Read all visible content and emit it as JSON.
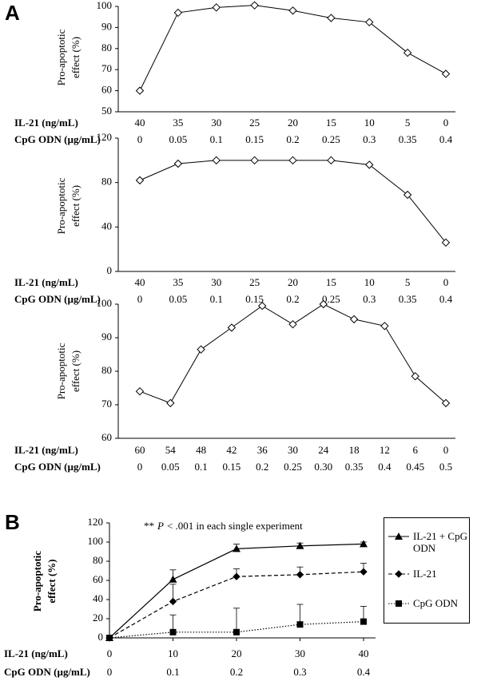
{
  "chart_data": [
    {
      "type": "line",
      "panel_label": "A",
      "y_label": [
        "Pro-apoptotic",
        "effect (%)"
      ],
      "row_label": "IL-21 (ng/mL)",
      "row2_label": "CpG ODN (µg/mL)",
      "categories": [
        "40",
        "35",
        "30",
        "25",
        "20",
        "15",
        "10",
        "5",
        "0"
      ],
      "categories2": [
        "0",
        "0.05",
        "0.1",
        "0.15",
        "0.2",
        "0.25",
        "0.3",
        "0.35",
        "0.4"
      ],
      "values": [
        60,
        97,
        99.5,
        100.5,
        98,
        94.5,
        92.5,
        78,
        68
      ],
      "color": "#000000",
      "marker": "diamond-open",
      "ylim": [
        50,
        100
      ],
      "yticks": [
        50,
        60,
        70,
        80,
        90,
        100
      ]
    },
    {
      "type": "line",
      "y_label": [
        "Pro-apoptotic",
        "effect (%)"
      ],
      "row_label": "IL-21 (ng/mL)",
      "row2_label": "CpG ODN (µg/mL)",
      "categories": [
        "40",
        "35",
        "30",
        "25",
        "20",
        "15",
        "10",
        "5",
        "0"
      ],
      "categories2": [
        "0",
        "0.05",
        "0.1",
        "0.15",
        "0.2",
        "0.25",
        "0.3",
        "0.35",
        "0.4"
      ],
      "values": [
        82,
        97,
        100,
        100,
        100,
        100,
        96,
        69,
        26
      ],
      "color": "#000000",
      "marker": "diamond-open",
      "ylim": [
        0,
        120
      ],
      "yticks": [
        0,
        40,
        80,
        120
      ]
    },
    {
      "type": "line",
      "y_label": [
        "Pro-apoptotic",
        "effect (%)"
      ],
      "row_label": "IL-21 (ng/mL)",
      "row2_label": "CpG ODN (µg/mL)",
      "categories": [
        "60",
        "54",
        "48",
        "42",
        "36",
        "30",
        "24",
        "18",
        "12",
        "6",
        "0"
      ],
      "categories2": [
        "0",
        "0.05",
        "0.1",
        "0.15",
        "0.2",
        "0.25",
        "0.30",
        "0.35",
        "0.4",
        "0.45",
        "0.5"
      ],
      "values": [
        74,
        70.5,
        86.5,
        93,
        99.5,
        94,
        100,
        95.5,
        93.5,
        78.5,
        70.5
      ],
      "color": "#000000",
      "marker": "diamond-open",
      "ylim": [
        60,
        100
      ],
      "yticks": [
        60,
        70,
        80,
        90,
        100
      ]
    },
    {
      "type": "errorline",
      "panel_label": "B",
      "y_label": [
        "Pro-apoptotic",
        "effect (%)"
      ],
      "annotation": [
        "**",
        "P",
        "< .001 in each single experiment"
      ],
      "row_label": "IL-21 (ng/mL)",
      "row2_label": "CpG ODN (µg/mL)",
      "x": [
        0,
        10,
        20,
        30,
        40
      ],
      "xlim": [
        0,
        40
      ],
      "xticks": [
        0,
        10,
        20,
        30,
        40
      ],
      "x2lim": [
        0,
        0.4
      ],
      "x2ticks": [
        0,
        0.1,
        0.2,
        0.3,
        0.4
      ],
      "ylim": [
        0,
        120
      ],
      "yticks": [
        0,
        20,
        40,
        60,
        80,
        100,
        120
      ],
      "series": [
        {
          "name": "IL-21 + CpG ODN",
          "color": "#000000",
          "marker": "triangle",
          "line_style": "solid",
          "values": [
            0,
            61,
            93,
            96,
            98
          ],
          "errors": [
            0,
            10,
            5,
            3,
            2
          ]
        },
        {
          "name": "IL-21",
          "color": "#000000",
          "marker": "diamond",
          "line_style": "dashed",
          "values": [
            0,
            38,
            64,
            66,
            69
          ],
          "errors": [
            0,
            18,
            8,
            8,
            9
          ]
        },
        {
          "name": "CpG ODN",
          "color": "#000000",
          "marker": "square",
          "line_style": "dotted",
          "values": [
            0,
            6,
            6,
            14,
            17
          ],
          "errors": [
            0,
            18,
            25,
            21,
            16
          ]
        }
      ]
    }
  ]
}
